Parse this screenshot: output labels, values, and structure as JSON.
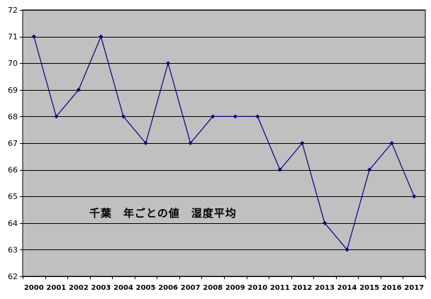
{
  "colors": {
    "plot_background": "#c0c0c0",
    "gridline": "#000000",
    "series_line": "#000080",
    "marker": "#000080",
    "text": "#000000"
  },
  "chart_data": {
    "type": "line",
    "title": "千葉　年ごとの値　湿度平均",
    "xlabel": "",
    "ylabel": "",
    "x": [
      "2000",
      "2001",
      "2002",
      "2003",
      "2004",
      "2005",
      "2006",
      "2007",
      "2008",
      "2009",
      "2010",
      "2011",
      "2012",
      "2013",
      "2014",
      "2015",
      "2016",
      "2017"
    ],
    "series": [
      {
        "values": [
          71,
          68,
          69,
          71,
          68,
          67,
          70,
          67,
          68,
          68,
          68,
          66,
          67,
          64,
          63,
          66,
          67,
          65
        ]
      }
    ],
    "ylim": [
      62,
      72
    ],
    "yticks": [
      62,
      63,
      64,
      65,
      66,
      67,
      68,
      69,
      70,
      71,
      72
    ],
    "grid": true,
    "legend": "none",
    "marker": "diamond"
  }
}
